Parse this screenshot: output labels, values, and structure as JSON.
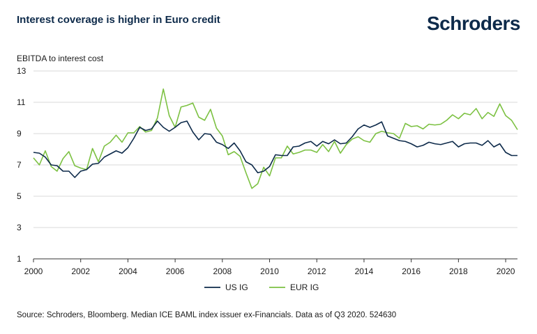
{
  "header": {
    "title": "Interest coverage is higher in Euro credit",
    "brand": "Schroders"
  },
  "footer": {
    "source": "Source: Schroders, Bloomberg. Median ICE BAML index issuer ex-Financials. Data as of Q3 2020. 524630"
  },
  "colors": {
    "us": "#0d2a4a",
    "eur": "#7cc142",
    "grid": "#d9d9d9",
    "axis": "#333333"
  },
  "chart_data": {
    "type": "line",
    "title": "Interest coverage is higher in Euro credit",
    "ylabel": "EBITDA to interest cost",
    "xlabel": "",
    "ylim": [
      1,
      13
    ],
    "xlim": [
      2000,
      2020.5
    ],
    "yticks": [
      "1",
      "3",
      "5",
      "7",
      "9",
      "11",
      "13"
    ],
    "xticks": [
      "2000",
      "2002",
      "2004",
      "2006",
      "2008",
      "2010",
      "2012",
      "2014",
      "2016",
      "2018",
      "2020"
    ],
    "grid": "horizontal",
    "legend": "bottom-center",
    "x": [
      2000.0,
      2000.25,
      2000.5,
      2000.75,
      2001.0,
      2001.25,
      2001.5,
      2001.75,
      2002.0,
      2002.25,
      2002.5,
      2002.75,
      2003.0,
      2003.25,
      2003.5,
      2003.75,
      2004.0,
      2004.25,
      2004.5,
      2004.75,
      2005.0,
      2005.25,
      2005.5,
      2005.75,
      2006.0,
      2006.25,
      2006.5,
      2006.75,
      2007.0,
      2007.25,
      2007.5,
      2007.75,
      2008.0,
      2008.25,
      2008.5,
      2008.75,
      2009.0,
      2009.25,
      2009.5,
      2009.75,
      2010.0,
      2010.25,
      2010.5,
      2010.75,
      2011.0,
      2011.25,
      2011.5,
      2011.75,
      2012.0,
      2012.25,
      2012.5,
      2012.75,
      2013.0,
      2013.25,
      2013.5,
      2013.75,
      2014.0,
      2014.25,
      2014.5,
      2014.75,
      2015.0,
      2015.25,
      2015.5,
      2015.75,
      2016.0,
      2016.25,
      2016.5,
      2016.75,
      2017.0,
      2017.25,
      2017.5,
      2017.75,
      2018.0,
      2018.25,
      2018.5,
      2018.75,
      2019.0,
      2019.25,
      2019.5,
      2019.75,
      2020.0,
      2020.25,
      2020.5
    ],
    "series": [
      {
        "name": "US IG",
        "color": "#0d2a4a",
        "values": [
          7.8,
          7.75,
          7.5,
          7.0,
          6.95,
          6.6,
          6.6,
          6.2,
          6.6,
          6.7,
          7.05,
          7.1,
          7.5,
          7.7,
          7.9,
          7.75,
          8.1,
          8.7,
          9.4,
          9.2,
          9.3,
          9.8,
          9.4,
          9.15,
          9.4,
          9.7,
          9.8,
          9.1,
          8.6,
          9.0,
          8.95,
          8.45,
          8.3,
          8.05,
          8.4,
          7.9,
          7.2,
          7.0,
          6.5,
          6.6,
          6.9,
          7.65,
          7.6,
          7.6,
          8.15,
          8.2,
          8.4,
          8.5,
          8.2,
          8.5,
          8.35,
          8.6,
          8.35,
          8.4,
          8.8,
          9.3,
          9.55,
          9.4,
          9.55,
          9.75,
          8.85,
          8.7,
          8.55,
          8.5,
          8.35,
          8.15,
          8.25,
          8.45,
          8.35,
          8.3,
          8.4,
          8.5,
          8.15,
          8.35,
          8.4,
          8.4,
          8.25,
          8.55,
          8.15,
          8.35,
          7.8,
          7.6,
          7.6
        ]
      },
      {
        "name": "EUR IG",
        "color": "#7cc142",
        "values": [
          7.45,
          7.0,
          7.9,
          6.9,
          6.6,
          7.4,
          7.85,
          6.95,
          6.8,
          6.7,
          8.05,
          7.2,
          8.2,
          8.45,
          8.9,
          8.45,
          9.05,
          9.05,
          9.45,
          9.1,
          9.2,
          10.0,
          11.85,
          10.15,
          9.4,
          10.7,
          10.8,
          10.95,
          10.05,
          9.85,
          10.55,
          9.35,
          8.85,
          7.65,
          7.85,
          7.55,
          6.5,
          5.5,
          5.8,
          6.85,
          6.3,
          7.45,
          7.45,
          8.2,
          7.7,
          7.8,
          7.95,
          7.95,
          7.8,
          8.3,
          7.85,
          8.5,
          7.75,
          8.3,
          8.65,
          8.8,
          8.55,
          8.45,
          9.0,
          9.15,
          9.05,
          9.0,
          8.7,
          9.65,
          9.45,
          9.5,
          9.3,
          9.6,
          9.55,
          9.6,
          9.85,
          10.2,
          9.95,
          10.3,
          10.2,
          10.6,
          9.95,
          10.35,
          10.1,
          10.9,
          10.15,
          9.85,
          9.25
        ]
      }
    ]
  }
}
